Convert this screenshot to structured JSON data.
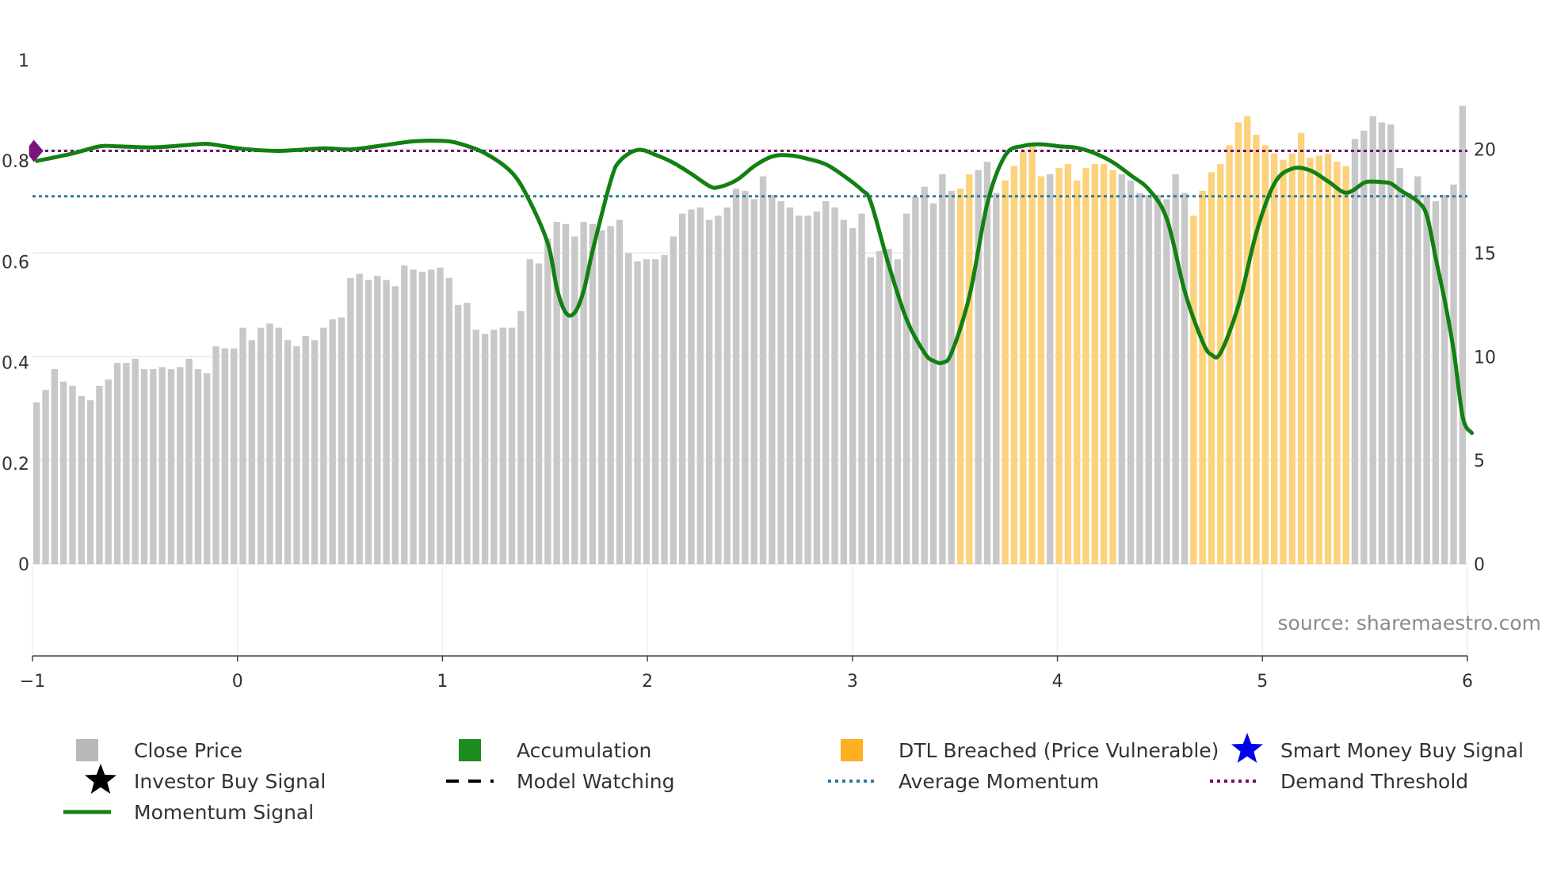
{
  "chart_data": {
    "type": "bar",
    "source_note": "source: sharemaestro.com",
    "left_axis": {
      "ylim": [
        0,
        1
      ],
      "ticks": [
        0,
        0.2,
        0.4,
        0.6,
        0.8,
        1
      ],
      "tick_labels": [
        "0",
        "0.2",
        "0.4",
        "0.6",
        "0.8",
        "1"
      ]
    },
    "right_axis": {
      "ylim": [
        0,
        24.3
      ],
      "ticks": [
        0,
        5,
        10,
        15,
        20
      ],
      "tick_labels": [
        "0",
        "5",
        "10",
        "15",
        "20"
      ]
    },
    "x_axis": {
      "xlim": [
        -1,
        6
      ],
      "ticks": [
        -1,
        0,
        1,
        2,
        3,
        4,
        5,
        6
      ],
      "tick_labels": [
        "−1",
        "0",
        "1",
        "2",
        "3",
        "4",
        "5",
        "6"
      ]
    },
    "average_momentum": 0.73,
    "demand_threshold": 0.82,
    "close_price": [
      7.8,
      8.4,
      9.4,
      8.8,
      8.6,
      8.1,
      7.9,
      8.6,
      8.9,
      9.7,
      9.7,
      9.9,
      9.4,
      9.4,
      9.5,
      9.4,
      9.5,
      9.9,
      9.4,
      9.2,
      10.5,
      10.4,
      10.4,
      11.4,
      10.8,
      11.4,
      11.6,
      11.4,
      10.8,
      10.5,
      11.0,
      10.8,
      11.4,
      11.8,
      11.9,
      13.8,
      14.0,
      13.7,
      13.9,
      13.7,
      13.4,
      14.4,
      14.2,
      14.1,
      14.2,
      14.3,
      13.8,
      12.5,
      12.6,
      11.3,
      11.1,
      11.3,
      11.4,
      11.4,
      12.2,
      14.7,
      14.5,
      15.7,
      16.5,
      16.4,
      15.8,
      16.5,
      16.4,
      16.1,
      16.3,
      16.6,
      15.0,
      14.6,
      14.7,
      14.7,
      14.9,
      15.8,
      16.9,
      17.1,
      17.2,
      16.6,
      16.8,
      17.2,
      18.1,
      18.0,
      17.6,
      18.7,
      17.8,
      17.5,
      17.2,
      16.8,
      16.8,
      17.0,
      17.5,
      17.2,
      16.6,
      16.2,
      16.9,
      14.8,
      15.1,
      15.2,
      14.7,
      16.9,
      17.7,
      18.2,
      17.4,
      18.8,
      18.0,
      18.1,
      18.8,
      19.0,
      19.4,
      17.9,
      18.5,
      19.2,
      19.9,
      20.2,
      18.7,
      18.8,
      19.1,
      19.3,
      18.5,
      19.1,
      19.3,
      19.3,
      19.0,
      18.8,
      18.5,
      17.9,
      17.8,
      17.8,
      17.6,
      18.8,
      17.9,
      16.8,
      18.0,
      18.9,
      19.3,
      20.2,
      21.3,
      21.6,
      20.7,
      20.2,
      19.8,
      19.5,
      19.8,
      20.8,
      19.6,
      19.7,
      19.8,
      19.4,
      19.2,
      20.5,
      20.9,
      21.6,
      21.3,
      21.2,
      19.1,
      17.9,
      18.7,
      17.8,
      17.5,
      17.8,
      18.3,
      22.1
    ],
    "dtl_breached_ranges": [
      [
        103,
        104
      ],
      [
        108,
        112
      ],
      [
        114,
        118
      ],
      [
        119,
        120
      ],
      [
        129,
        146
      ]
    ],
    "momentum_anchors": [
      [
        0,
        0.8
      ],
      [
        4,
        0.815
      ],
      [
        7,
        0.829
      ],
      [
        9,
        0.829
      ],
      [
        13,
        0.827
      ],
      [
        17,
        0.832
      ],
      [
        19,
        0.834
      ],
      [
        21,
        0.829
      ],
      [
        23,
        0.824
      ],
      [
        27,
        0.82
      ],
      [
        32,
        0.825
      ],
      [
        35,
        0.823
      ],
      [
        39,
        0.832
      ],
      [
        42,
        0.839
      ],
      [
        45,
        0.84
      ],
      [
        47,
        0.835
      ],
      [
        50,
        0.815
      ],
      [
        53,
        0.776
      ],
      [
        55,
        0.718
      ],
      [
        57,
        0.634
      ],
      [
        58,
        0.545
      ],
      [
        59,
        0.498
      ],
      [
        60,
        0.5
      ],
      [
        61,
        0.545
      ],
      [
        62,
        0.625
      ],
      [
        64,
        0.762
      ],
      [
        65,
        0.8
      ],
      [
        67,
        0.822
      ],
      [
        69,
        0.812
      ],
      [
        71,
        0.796
      ],
      [
        73,
        0.774
      ],
      [
        75,
        0.75
      ],
      [
        76,
        0.748
      ],
      [
        78,
        0.762
      ],
      [
        80,
        0.79
      ],
      [
        82,
        0.809
      ],
      [
        84,
        0.811
      ],
      [
        86,
        0.804
      ],
      [
        88,
        0.793
      ],
      [
        90,
        0.77
      ],
      [
        92,
        0.742
      ],
      [
        93,
        0.717
      ],
      [
        95,
        0.592
      ],
      [
        97,
        0.484
      ],
      [
        99,
        0.418
      ],
      [
        100,
        0.403
      ],
      [
        101,
        0.4
      ],
      [
        102,
        0.42
      ],
      [
        104,
        0.534
      ],
      [
        106,
        0.718
      ],
      [
        108,
        0.812
      ],
      [
        110,
        0.83
      ],
      [
        112,
        0.833
      ],
      [
        114,
        0.829
      ],
      [
        116,
        0.826
      ],
      [
        118,
        0.815
      ],
      [
        120,
        0.797
      ],
      [
        122,
        0.771
      ],
      [
        124,
        0.743
      ],
      [
        126,
        0.684
      ],
      [
        128,
        0.54
      ],
      [
        130,
        0.44
      ],
      [
        131,
        0.415
      ],
      [
        132,
        0.42
      ],
      [
        134,
        0.515
      ],
      [
        136,
        0.66
      ],
      [
        138,
        0.756
      ],
      [
        140,
        0.785
      ],
      [
        142,
        0.781
      ],
      [
        144,
        0.759
      ],
      [
        146,
        0.737
      ],
      [
        148,
        0.757
      ],
      [
        149,
        0.759
      ],
      [
        150,
        0.758
      ],
      [
        151,
        0.755
      ],
      [
        152,
        0.742
      ],
      [
        154,
        0.719
      ],
      [
        155,
        0.69
      ],
      [
        156,
        0.604
      ],
      [
        157,
        0.52
      ],
      [
        158,
        0.42
      ],
      [
        159,
        0.29
      ],
      [
        160,
        0.26
      ]
    ],
    "momentum_start_marker": {
      "index": 0,
      "value": 0.82
    },
    "legend": [
      {
        "label": "Close Price",
        "swatch": "square",
        "color": "#b8b8b8"
      },
      {
        "label": "Accumulation",
        "swatch": "square",
        "color": "#1e8c1e"
      },
      {
        "label": "DTL Breached (Price Vulnerable)",
        "swatch": "square",
        "color": "#ffb020"
      },
      {
        "label": "Smart Money Buy Signal",
        "swatch": "star",
        "color": "#0000ee"
      },
      {
        "label": "Investor Buy Signal",
        "swatch": "star",
        "color": "#000000"
      },
      {
        "label": "Model Watching",
        "swatch": "dash",
        "color": "#000000"
      },
      {
        "label": "Average Momentum",
        "swatch": "dot",
        "color": "#2f7a9a"
      },
      {
        "label": "Demand Threshold",
        "swatch": "dot",
        "color": "#6b0f6b"
      },
      {
        "label": "Momentum Signal",
        "swatch": "line",
        "color": "#158015"
      }
    ],
    "colors": {
      "close_price_bar": "#c8c8c8",
      "dtl_bar": "#fcd27c",
      "momentum_line": "#128012",
      "momentum_line_light": "#4d8f3c",
      "average_line": "#2f7a9a",
      "threshold_line": "#6b0f6b",
      "start_marker": "#7a147a",
      "grid": "#e8e8e8",
      "axis": "#444444"
    }
  }
}
